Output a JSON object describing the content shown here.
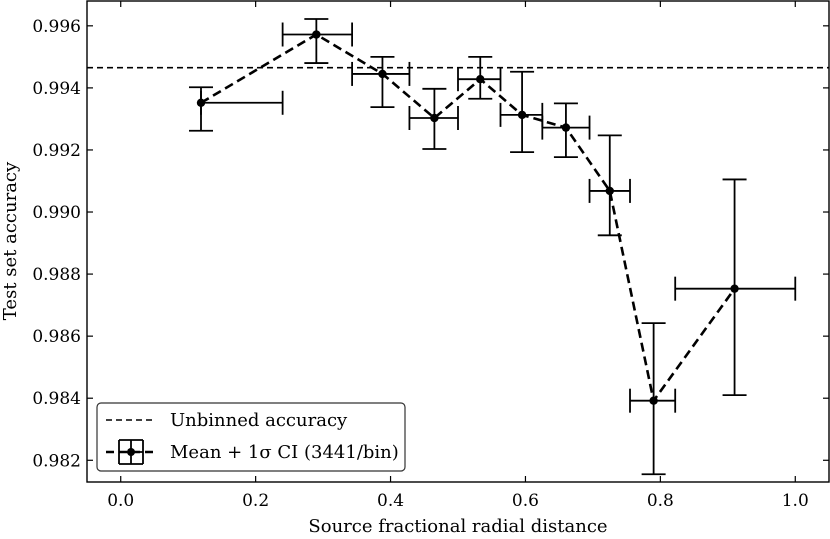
{
  "chart_data": {
    "type": "line",
    "title": "",
    "xlabel": "Source fractional radial distance",
    "ylabel": "Test set accuracy",
    "xlim": [
      -0.05,
      1.05
    ],
    "ylim": [
      0.9813,
      0.9968
    ],
    "xticks": [
      0.0,
      0.2,
      0.4,
      0.6,
      0.8,
      1.0
    ],
    "xtick_labels": [
      "0.0",
      "0.2",
      "0.4",
      "0.6",
      "0.8",
      "1.0"
    ],
    "yticks": [
      0.982,
      0.984,
      0.986,
      0.988,
      0.99,
      0.992,
      0.994,
      0.996
    ],
    "ytick_labels": [
      "0.982",
      "0.984",
      "0.986",
      "0.988",
      "0.990",
      "0.992",
      "0.994",
      "0.996"
    ],
    "grid": false,
    "legend_position": "lower-left",
    "reference_line": {
      "name": "Unbinned accuracy",
      "y": 0.99465,
      "style": "dashed"
    },
    "series": [
      {
        "name": "Mean + 1σ CI (3441/bin)",
        "style": "dashed-with-markers",
        "points": [
          {
            "x": 0.119,
            "y": 0.99352,
            "xerr": [
              0.119,
              0.24
            ],
            "yerr": [
              0.99262,
              0.99402
            ]
          },
          {
            "x": 0.29,
            "y": 0.99572,
            "xerr": [
              0.24,
              0.343
            ],
            "yerr": [
              0.9948,
              0.99622
            ]
          },
          {
            "x": 0.388,
            "y": 0.99445,
            "xerr": [
              0.343,
              0.428
            ],
            "yerr": [
              0.99338,
              0.995
            ]
          },
          {
            "x": 0.465,
            "y": 0.99303,
            "xerr": [
              0.428,
              0.5
            ],
            "yerr": [
              0.99203,
              0.99397
            ]
          },
          {
            "x": 0.533,
            "y": 0.99428,
            "xerr": [
              0.5,
              0.563
            ],
            "yerr": [
              0.99365,
              0.995
            ]
          },
          {
            "x": 0.595,
            "y": 0.99313,
            "xerr": [
              0.563,
              0.625
            ],
            "yerr": [
              0.99193,
              0.99452
            ]
          },
          {
            "x": 0.66,
            "y": 0.99272,
            "xerr": [
              0.625,
              0.695
            ],
            "yerr": [
              0.99177,
              0.9935
            ]
          },
          {
            "x": 0.725,
            "y": 0.99068,
            "xerr": [
              0.695,
              0.755
            ],
            "yerr": [
              0.98925,
              0.99247
            ]
          },
          {
            "x": 0.79,
            "y": 0.98392,
            "xerr": [
              0.755,
              0.822
            ],
            "yerr": [
              0.98155,
              0.98642
            ]
          },
          {
            "x": 0.91,
            "y": 0.98753,
            "xerr": [
              0.822,
              1.0
            ],
            "yerr": [
              0.9841,
              0.99105
            ]
          }
        ]
      }
    ]
  }
}
